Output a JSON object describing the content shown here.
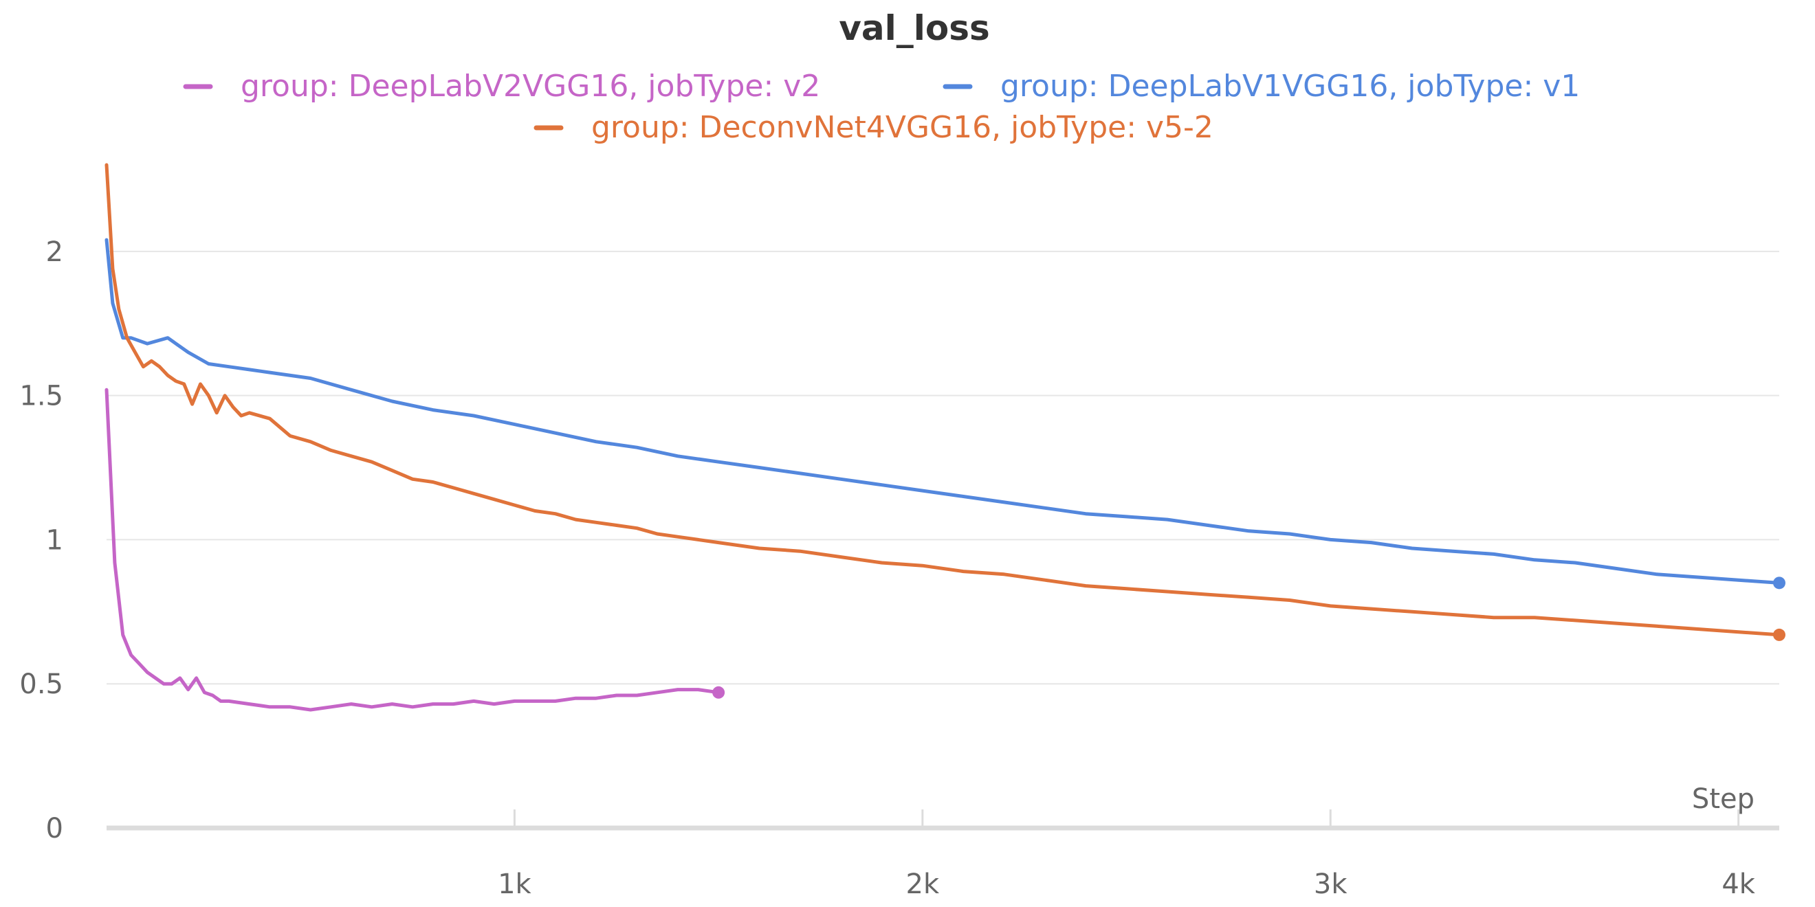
{
  "chart_data": {
    "type": "line",
    "title": "val_loss",
    "xlabel": "Step",
    "ylabel": "",
    "xlim": [
      0,
      4100
    ],
    "ylim": [
      0,
      2.3
    ],
    "grid": true,
    "legend_position": "top",
    "x_ticks": [
      {
        "value": 1000,
        "label": "1k"
      },
      {
        "value": 2000,
        "label": "2k"
      },
      {
        "value": 3000,
        "label": "3k"
      },
      {
        "value": 4000,
        "label": "4k"
      }
    ],
    "y_ticks": [
      {
        "value": 0,
        "label": "0"
      },
      {
        "value": 0.5,
        "label": "0.5"
      },
      {
        "value": 1,
        "label": "1"
      },
      {
        "value": 1.5,
        "label": "1.5"
      },
      {
        "value": 2,
        "label": "2"
      }
    ],
    "series": [
      {
        "name": "group: DeepLabV2VGG16, jobType: v2",
        "color": "#c565c7",
        "x": [
          0,
          20,
          40,
          60,
          80,
          100,
          120,
          140,
          160,
          180,
          200,
          220,
          240,
          260,
          280,
          300,
          350,
          400,
          450,
          500,
          550,
          600,
          650,
          700,
          750,
          800,
          850,
          900,
          950,
          1000,
          1050,
          1100,
          1150,
          1200,
          1250,
          1300,
          1350,
          1400,
          1450,
          1500
        ],
        "values": [
          1.52,
          0.92,
          0.67,
          0.6,
          0.57,
          0.54,
          0.52,
          0.5,
          0.5,
          0.52,
          0.48,
          0.52,
          0.47,
          0.46,
          0.44,
          0.44,
          0.43,
          0.42,
          0.42,
          0.41,
          0.42,
          0.43,
          0.42,
          0.43,
          0.42,
          0.43,
          0.43,
          0.44,
          0.43,
          0.44,
          0.44,
          0.44,
          0.45,
          0.45,
          0.46,
          0.46,
          0.47,
          0.48,
          0.48,
          0.47
        ]
      },
      {
        "name": "group: DeepLabV1VGG16, jobType: v1",
        "color": "#5387dd",
        "x": [
          0,
          15,
          40,
          60,
          100,
          150,
          200,
          250,
          300,
          350,
          400,
          500,
          600,
          700,
          800,
          900,
          1000,
          1100,
          1200,
          1300,
          1400,
          1500,
          1600,
          1700,
          1800,
          1900,
          2000,
          2100,
          2200,
          2300,
          2400,
          2500,
          2600,
          2700,
          2800,
          2900,
          3000,
          3100,
          3200,
          3300,
          3400,
          3500,
          3600,
          3700,
          3800,
          3900,
          4000,
          4100
        ],
        "values": [
          2.04,
          1.82,
          1.7,
          1.7,
          1.68,
          1.7,
          1.65,
          1.61,
          1.6,
          1.59,
          1.58,
          1.56,
          1.52,
          1.48,
          1.45,
          1.43,
          1.4,
          1.37,
          1.34,
          1.32,
          1.29,
          1.27,
          1.25,
          1.23,
          1.21,
          1.19,
          1.17,
          1.15,
          1.13,
          1.11,
          1.09,
          1.08,
          1.07,
          1.05,
          1.03,
          1.02,
          1.0,
          0.99,
          0.97,
          0.96,
          0.95,
          0.93,
          0.92,
          0.9,
          0.88,
          0.87,
          0.86,
          0.85
        ]
      },
      {
        "name": "group: DeconvNet4VGG16, jobType: v5-2",
        "color": "#e0733a",
        "x": [
          0,
          15,
          30,
          50,
          70,
          90,
          110,
          130,
          150,
          170,
          190,
          210,
          230,
          250,
          270,
          290,
          310,
          330,
          350,
          400,
          450,
          500,
          550,
          600,
          650,
          700,
          750,
          800,
          850,
          900,
          950,
          1000,
          1050,
          1100,
          1150,
          1200,
          1250,
          1300,
          1350,
          1400,
          1450,
          1500,
          1600,
          1700,
          1800,
          1900,
          2000,
          2100,
          2200,
          2300,
          2400,
          2500,
          2600,
          2700,
          2800,
          2900,
          3000,
          3100,
          3200,
          3300,
          3400,
          3500,
          3600,
          3700,
          3800,
          3900,
          4000,
          4100
        ],
        "values": [
          2.3,
          1.94,
          1.8,
          1.7,
          1.65,
          1.6,
          1.62,
          1.6,
          1.57,
          1.55,
          1.54,
          1.47,
          1.54,
          1.5,
          1.44,
          1.5,
          1.46,
          1.43,
          1.44,
          1.42,
          1.36,
          1.34,
          1.31,
          1.29,
          1.27,
          1.24,
          1.21,
          1.2,
          1.18,
          1.16,
          1.14,
          1.12,
          1.1,
          1.09,
          1.07,
          1.06,
          1.05,
          1.04,
          1.02,
          1.01,
          1.0,
          0.99,
          0.97,
          0.96,
          0.94,
          0.92,
          0.91,
          0.89,
          0.88,
          0.86,
          0.84,
          0.83,
          0.82,
          0.81,
          0.8,
          0.79,
          0.77,
          0.76,
          0.75,
          0.74,
          0.73,
          0.73,
          0.72,
          0.71,
          0.7,
          0.69,
          0.68,
          0.67
        ]
      }
    ]
  }
}
